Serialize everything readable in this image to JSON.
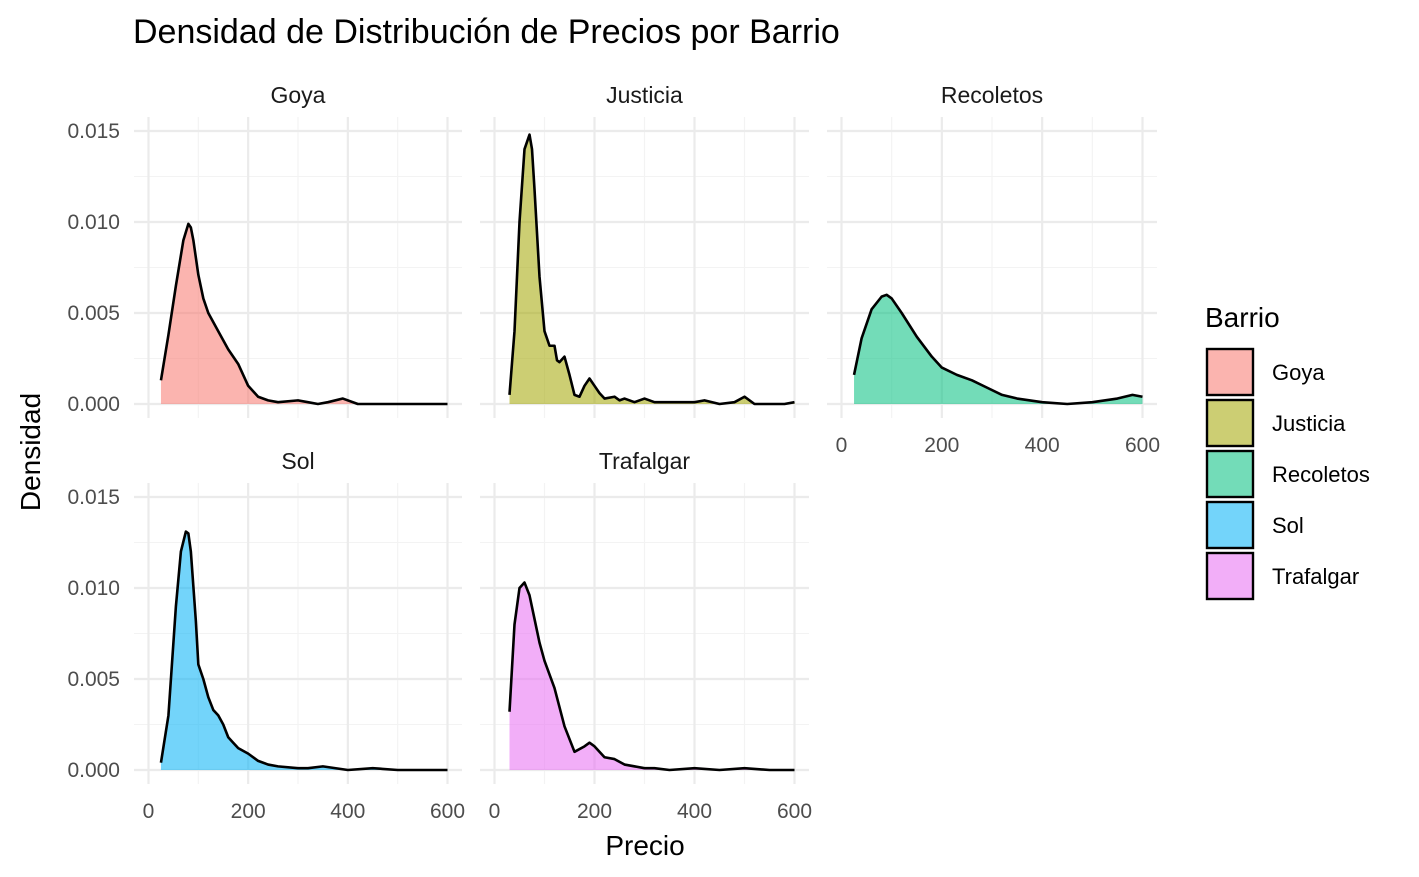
{
  "chart_data": {
    "type": "area",
    "title": "Densidad de Distribución de Precios por Barrio",
    "xlabel": "Precio",
    "ylabel": "Densidad",
    "xlim": [
      0,
      600
    ],
    "ylim": [
      0,
      0.015
    ],
    "x_ticks": [
      0,
      200,
      400,
      600
    ],
    "y_ticks": [
      0.0,
      0.005,
      0.01,
      0.015
    ],
    "x_tick_labels": [
      "0",
      "200",
      "400",
      "600"
    ],
    "y_tick_labels": [
      "0.000",
      "0.005",
      "0.010",
      "0.015"
    ],
    "grid": true,
    "legend": {
      "title": "Barrio",
      "placement": "right"
    },
    "series": [
      {
        "name": "Goya",
        "color": "#F8766D",
        "x": [
          25,
          40,
          55,
          70,
          80,
          85,
          90,
          100,
          110,
          120,
          140,
          160,
          180,
          200,
          220,
          240,
          260,
          300,
          320,
          340,
          360,
          390,
          420,
          450,
          500,
          550,
          600
        ],
        "y": [
          0.0013,
          0.0038,
          0.0065,
          0.009,
          0.0099,
          0.0097,
          0.009,
          0.0071,
          0.0058,
          0.005,
          0.004,
          0.003,
          0.0022,
          0.001,
          0.0004,
          0.0002,
          0.0001,
          0.0002,
          0.0001,
          0.0,
          0.0001,
          0.0003,
          0.0,
          0.0,
          0.0,
          0.0,
          0.0
        ]
      },
      {
        "name": "Justicia",
        "color": "#A3A500",
        "x": [
          30,
          40,
          50,
          60,
          70,
          75,
          80,
          90,
          100,
          110,
          120,
          125,
          130,
          140,
          150,
          160,
          170,
          180,
          190,
          200,
          210,
          220,
          240,
          250,
          260,
          280,
          300,
          320,
          350,
          400,
          420,
          450,
          480,
          500,
          520,
          550,
          580,
          600
        ],
        "y": [
          0.0005,
          0.004,
          0.01,
          0.014,
          0.0148,
          0.014,
          0.0118,
          0.007,
          0.004,
          0.0032,
          0.0032,
          0.0024,
          0.0023,
          0.0026,
          0.0016,
          0.0005,
          0.0004,
          0.001,
          0.0014,
          0.001,
          0.0006,
          0.0003,
          0.0004,
          0.0002,
          0.0003,
          0.0001,
          0.0003,
          0.0001,
          0.0001,
          0.0001,
          0.0002,
          0.0,
          0.0001,
          0.0004,
          0.0,
          0.0,
          0.0,
          0.0001
        ]
      },
      {
        "name": "Recoletos",
        "color": "#00BF7D",
        "x": [
          25,
          40,
          60,
          80,
          90,
          100,
          120,
          150,
          180,
          200,
          230,
          260,
          290,
          320,
          350,
          400,
          450,
          500,
          550,
          580,
          600
        ],
        "y": [
          0.0016,
          0.0036,
          0.0052,
          0.0059,
          0.006,
          0.0058,
          0.005,
          0.0037,
          0.0026,
          0.002,
          0.0016,
          0.0013,
          0.0009,
          0.0005,
          0.0003,
          0.0001,
          0.0,
          0.0001,
          0.0003,
          0.0005,
          0.0004
        ]
      },
      {
        "name": "Sol",
        "color": "#00B0F6",
        "x": [
          25,
          40,
          55,
          65,
          75,
          80,
          85,
          95,
          100,
          110,
          120,
          130,
          140,
          150,
          160,
          170,
          180,
          200,
          220,
          240,
          260,
          300,
          320,
          350,
          400,
          450,
          500,
          550,
          600
        ],
        "y": [
          0.0004,
          0.003,
          0.009,
          0.012,
          0.0131,
          0.013,
          0.012,
          0.0082,
          0.0058,
          0.005,
          0.004,
          0.0033,
          0.003,
          0.0025,
          0.0018,
          0.0015,
          0.0012,
          0.0009,
          0.0005,
          0.0003,
          0.0002,
          0.0001,
          0.0001,
          0.0002,
          0.0,
          0.0001,
          0.0,
          0.0,
          0.0
        ]
      },
      {
        "name": "Trafalgar",
        "color": "#E76BF3",
        "x": [
          30,
          40,
          50,
          60,
          70,
          80,
          90,
          100,
          120,
          140,
          160,
          180,
          190,
          200,
          220,
          240,
          260,
          300,
          320,
          350,
          400,
          450,
          500,
          550,
          600
        ],
        "y": [
          0.0032,
          0.008,
          0.01,
          0.0103,
          0.0096,
          0.0083,
          0.007,
          0.006,
          0.0045,
          0.0024,
          0.001,
          0.0013,
          0.0015,
          0.0013,
          0.0007,
          0.0006,
          0.0003,
          0.0001,
          0.0001,
          0.0,
          0.0001,
          0.0,
          0.0001,
          0.0,
          0.0
        ]
      }
    ]
  }
}
